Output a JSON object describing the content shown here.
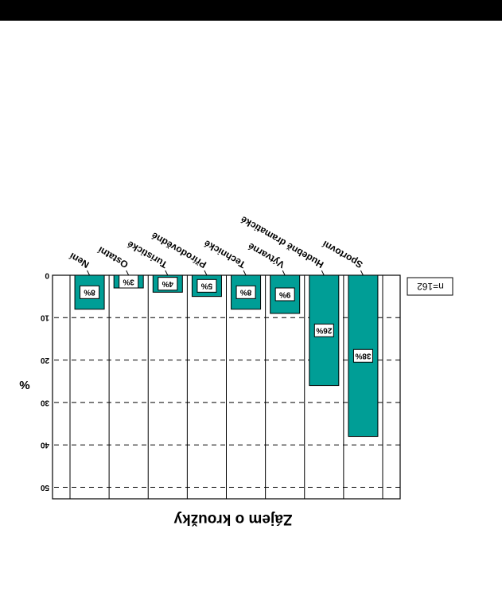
{
  "chart_data": {
    "type": "bar",
    "title": "Zájem o kroužky",
    "ylabel": "%",
    "categories": [
      "Sportovní",
      "Hudebně dramatické",
      "Výtvarné",
      "Technické",
      "Přírodovědné",
      "Turistické",
      "Ostatní",
      "Není"
    ],
    "values": [
      38,
      26,
      9,
      8,
      5,
      4,
      3,
      8
    ],
    "value_labels": [
      "38%",
      "26%",
      "9%",
      "8%",
      "5%",
      "4%",
      "3%",
      "8%"
    ],
    "y_ticks": [
      0,
      10,
      20,
      30,
      40,
      50
    ],
    "y_tick_labels": [
      "0",
      "10",
      "20",
      "30",
      "40",
      "50"
    ],
    "ylim": [
      0,
      50
    ],
    "n_label": "n=162",
    "bar_color": "#009e96",
    "orientation": "rotated 180°",
    "grid": "dashed horizontal"
  }
}
